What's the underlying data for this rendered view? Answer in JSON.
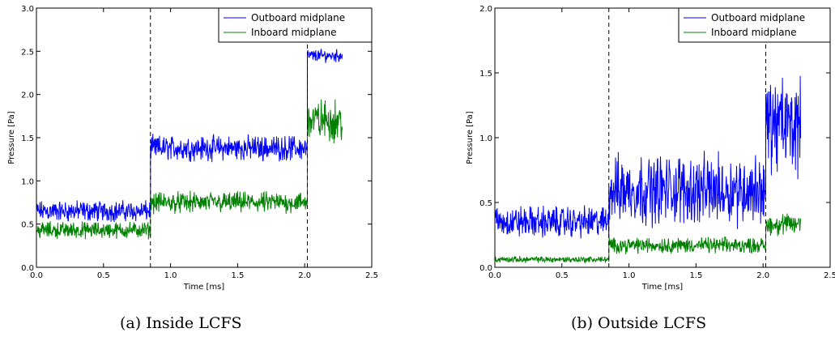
{
  "chart_data": [
    {
      "type": "line",
      "caption": "(a)  Inside LCFS",
      "xlabel": "Time [ms]",
      "ylabel": "Pressure [Pa]",
      "xlim": [
        0.0,
        2.5
      ],
      "ylim": [
        0.0,
        3.0
      ],
      "xticks": [
        "0.0",
        "0.5",
        "1.0",
        "1.5",
        "2.0",
        "2.5"
      ],
      "yticks": [
        "0.0",
        "0.5",
        "1.0",
        "1.5",
        "2.0",
        "2.5",
        "3.0"
      ],
      "xtick_values": [
        0.0,
        0.5,
        1.0,
        1.5,
        2.0,
        2.5
      ],
      "ytick_values": [
        0.0,
        0.5,
        1.0,
        1.5,
        2.0,
        2.5,
        3.0
      ],
      "vlines": [
        0.85,
        2.02
      ],
      "legend": "top-right",
      "grid": false,
      "series": [
        {
          "name": "Outboard midplane",
          "color": "#0000ff",
          "segments": [
            {
              "x": [
                0.0,
                0.85
              ],
              "mean": 0.65,
              "noise": 0.1
            },
            {
              "x": [
                0.85,
                2.02
              ],
              "mean": 1.38,
              "noise": 0.12
            },
            {
              "x": [
                2.02,
                2.28
              ],
              "mean": 2.45,
              "noise": 0.06
            }
          ]
        },
        {
          "name": "Inboard midplane",
          "color": "#008000",
          "segments": [
            {
              "x": [
                0.0,
                0.85
              ],
              "mean": 0.43,
              "noise": 0.08
            },
            {
              "x": [
                0.85,
                2.02
              ],
              "mean": 0.75,
              "noise": 0.1
            },
            {
              "x": [
                2.02,
                2.28
              ],
              "mean": 1.7,
              "noise": 0.2
            }
          ]
        }
      ]
    },
    {
      "type": "line",
      "caption": "(b)  Outside LCFS",
      "xlabel": "Time [ms]",
      "ylabel": "Pressure [Pa]",
      "xlim": [
        0.0,
        2.5
      ],
      "ylim": [
        0.0,
        2.0
      ],
      "xticks": [
        "0.0",
        "0.5",
        "1.0",
        "1.5",
        "2.0",
        "2.5"
      ],
      "yticks": [
        "0.0",
        "0.5",
        "1.0",
        "1.5",
        "2.0"
      ],
      "xtick_values": [
        0.0,
        0.5,
        1.0,
        1.5,
        2.0,
        2.5
      ],
      "ytick_values": [
        0.0,
        0.5,
        1.0,
        1.5,
        2.0
      ],
      "vlines": [
        0.85,
        2.02
      ],
      "legend": "top-right",
      "grid": false,
      "series": [
        {
          "name": "Outboard midplane",
          "color": "#0000ff",
          "segments": [
            {
              "x": [
                0.0,
                0.85
              ],
              "mean": 0.35,
              "noise": 0.1
            },
            {
              "x": [
                0.85,
                2.02
              ],
              "mean": 0.6,
              "noise": 0.22
            },
            {
              "x": [
                2.02,
                2.28
              ],
              "mean": 1.1,
              "noise": 0.3
            }
          ]
        },
        {
          "name": "Inboard midplane",
          "color": "#008000",
          "segments": [
            {
              "x": [
                0.0,
                0.85
              ],
              "mean": 0.06,
              "noise": 0.02
            },
            {
              "x": [
                0.85,
                2.02
              ],
              "mean": 0.17,
              "noise": 0.05
            },
            {
              "x": [
                2.02,
                2.28
              ],
              "mean": 0.33,
              "noise": 0.07
            }
          ]
        }
      ]
    }
  ]
}
